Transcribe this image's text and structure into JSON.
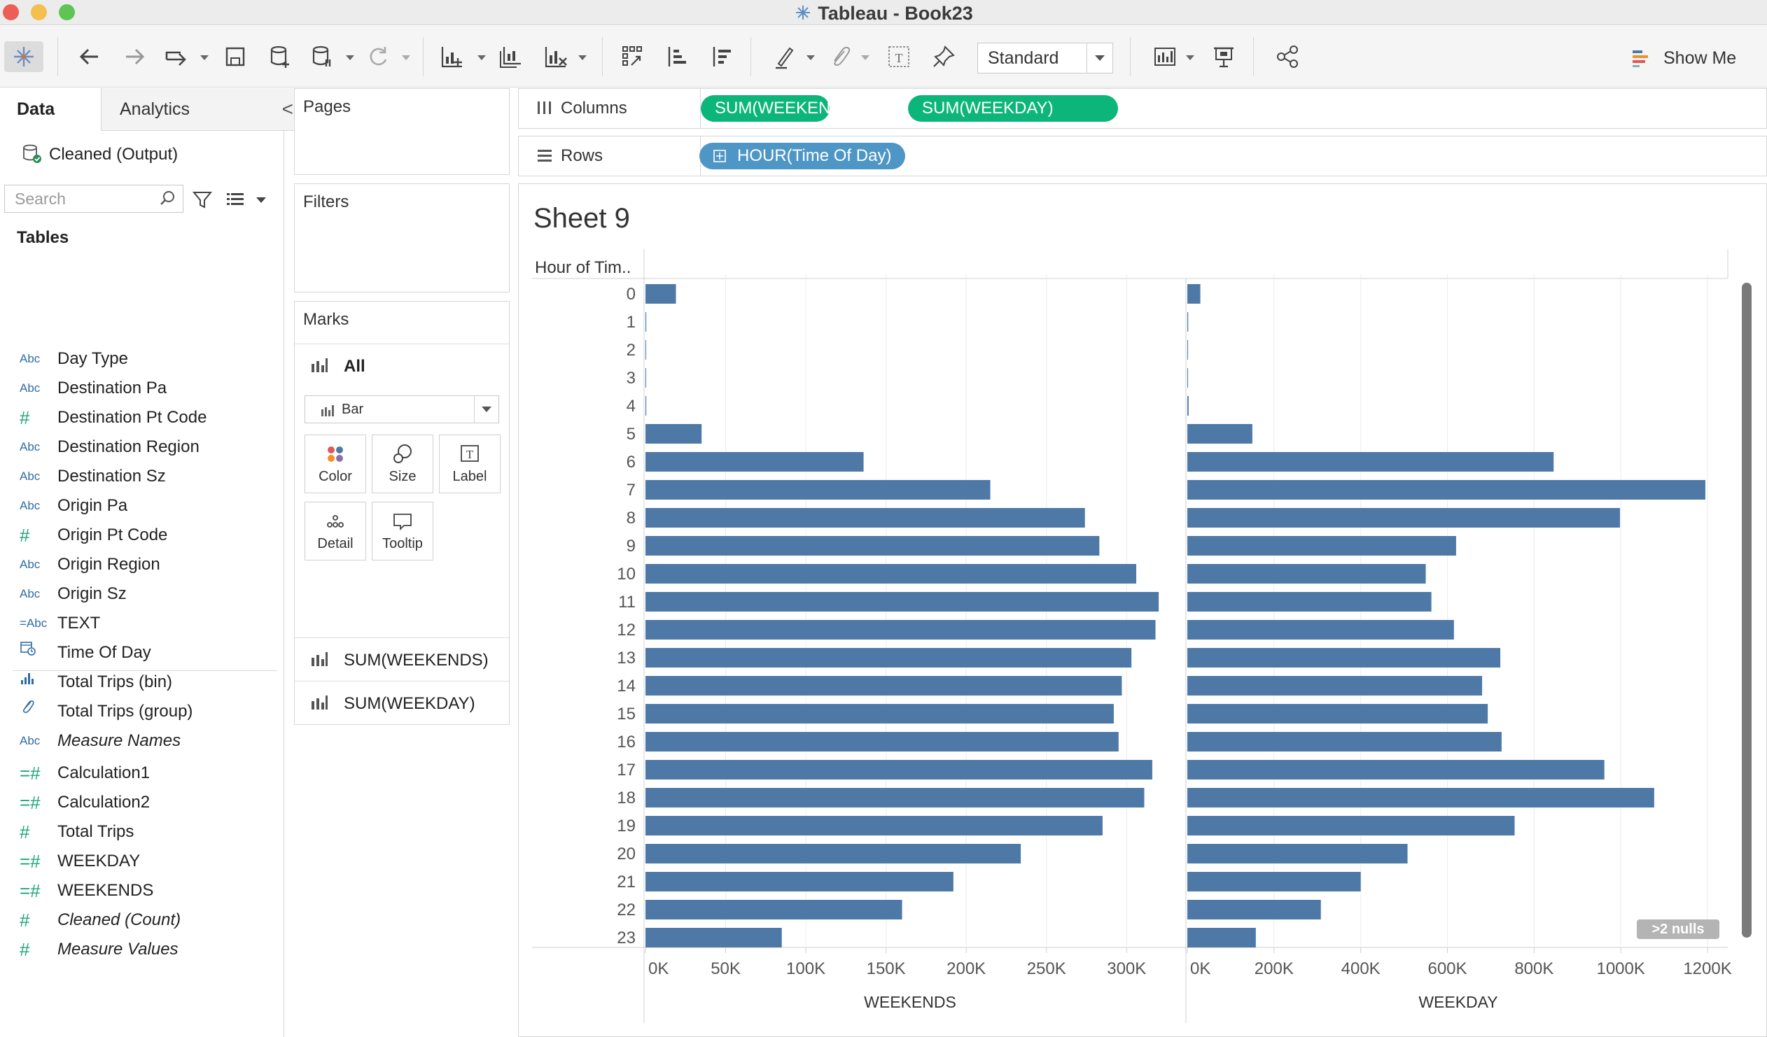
{
  "window": {
    "title": "Tableau - Book23"
  },
  "toolbar": {
    "standard_select": "Standard",
    "show_me": "Show Me"
  },
  "data_pane": {
    "tab_data": "Data",
    "tab_analytics": "Analytics",
    "collapse": "<",
    "datasource": "Cleaned (Output)",
    "search_placeholder": "Search",
    "tables_heading": "Tables",
    "fields": [
      {
        "type": "Abc",
        "name": "Day Type"
      },
      {
        "type": "Abc",
        "name": "Destination Pa"
      },
      {
        "type": "#",
        "name": "Destination Pt Code"
      },
      {
        "type": "Abc",
        "name": "Destination Region"
      },
      {
        "type": "Abc",
        "name": "Destination Sz"
      },
      {
        "type": "Abc",
        "name": "Origin Pa"
      },
      {
        "type": "#",
        "name": "Origin Pt Code"
      },
      {
        "type": "Abc",
        "name": "Origin Region"
      },
      {
        "type": "Abc",
        "name": "Origin Sz"
      },
      {
        "type": "=Abc",
        "name": "TEXT"
      },
      {
        "type": "date",
        "name": "Time Of Day"
      },
      {
        "type": "bin",
        "name": "Total Trips (bin)"
      },
      {
        "type": "group",
        "name": "Total Trips (group)"
      },
      {
        "type": "Abc",
        "name": "Measure Names"
      },
      {
        "type": "=#",
        "name": "Calculation1"
      },
      {
        "type": "=#",
        "name": "Calculation2"
      },
      {
        "type": "#",
        "name": "Total Trips"
      },
      {
        "type": "=#",
        "name": "WEEKDAY"
      },
      {
        "type": "=#",
        "name": "WEEKENDS"
      },
      {
        "type": "#",
        "name": "Cleaned (Count)"
      },
      {
        "type": "#",
        "name": "Measure Values"
      }
    ]
  },
  "pages_card": {
    "title": "Pages"
  },
  "filters_card": {
    "title": "Filters"
  },
  "marks_card": {
    "title": "Marks",
    "all": "All",
    "mark_type": "Bar",
    "buttons": {
      "color": "Color",
      "size": "Size",
      "label": "Label",
      "detail": "Detail",
      "tooltip": "Tooltip"
    },
    "measures": [
      "SUM(WEEKENDS)",
      "SUM(WEEKDAY)"
    ]
  },
  "shelves": {
    "columns_label": "Columns",
    "rows_label": "Rows",
    "columns_pills": [
      "SUM(WEEKENDS)",
      "SUM(WEEKDAY)"
    ],
    "rows_pill": "HOUR(Time Of Day)"
  },
  "sheet": {
    "title": "Sheet 9",
    "nulls_indicator": ">2 nulls"
  },
  "colors": {
    "bar": "#4e79a7",
    "measure_pill": "#0cb67a",
    "dimension_pill": "#4e96c5"
  },
  "chart_data": {
    "type": "bar",
    "orientation": "horizontal",
    "row_header": "Hour of Tim..",
    "categories": [
      "0",
      "1",
      "2",
      "3",
      "4",
      "5",
      "6",
      "7",
      "8",
      "9",
      "10",
      "11",
      "12",
      "13",
      "14",
      "15",
      "16",
      "17",
      "18",
      "19",
      "20",
      "21",
      "22",
      "23"
    ],
    "panels": [
      {
        "xlabel": "WEEKENDS",
        "xlim": [
          0,
          330000
        ],
        "ticks": [
          0,
          50000,
          100000,
          150000,
          200000,
          250000,
          300000
        ],
        "tick_labels": [
          "0K",
          "50K",
          "100K",
          "150K",
          "200K",
          "250K",
          "300K"
        ],
        "values": [
          19000,
          500,
          400,
          300,
          500,
          35000,
          136000,
          215000,
          274000,
          283000,
          306000,
          320000,
          318000,
          303000,
          297000,
          292000,
          295000,
          316000,
          311000,
          285000,
          234000,
          192000,
          160000,
          85000
        ]
      },
      {
        "xlabel": "WEEKDAY",
        "xlim": [
          0,
          1250000
        ],
        "ticks": [
          0,
          200000,
          400000,
          600000,
          800000,
          1000000,
          1200000
        ],
        "tick_labels": [
          "0K",
          "200K",
          "400K",
          "600K",
          "800K",
          "1000K",
          "1200K"
        ],
        "values": [
          30000,
          2000,
          1000,
          1000,
          3000,
          150000,
          845000,
          1195000,
          998000,
          620000,
          550000,
          563000,
          615000,
          722000,
          680000,
          693000,
          725000,
          962000,
          1077000,
          755000,
          508000,
          400000,
          308000,
          158000
        ]
      }
    ]
  }
}
